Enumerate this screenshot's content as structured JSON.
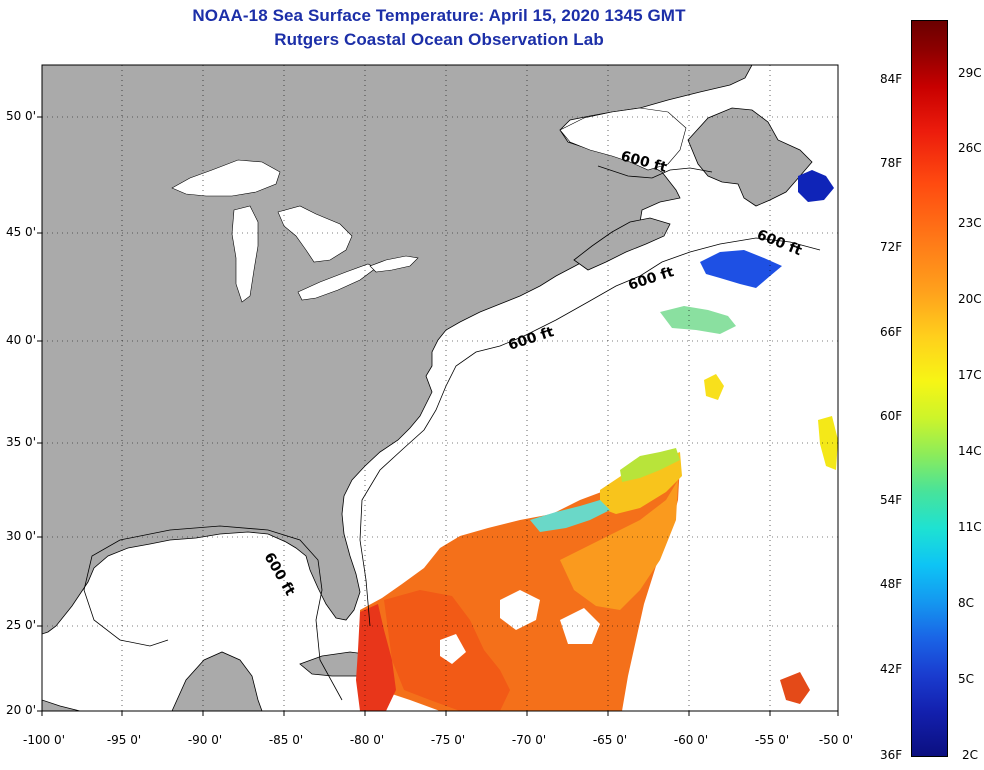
{
  "title": {
    "line1": "NOAA-18 Sea Surface Temperature:  April 15, 2020 1345 GMT",
    "line2": "Rutgers Coastal Ocean Observation Lab"
  },
  "axes": {
    "y_labels": [
      "50 0'",
      "45 0'",
      "40 0'",
      "35 0'",
      "30 0'",
      "25 0'",
      "20 0'"
    ],
    "x_labels": [
      "-100 0'",
      "-95 0'",
      "-90 0'",
      "-85 0'",
      "-80 0'",
      "-75 0'",
      "-70 0'",
      "-65 0'",
      "-60 0'",
      "-55 0'",
      "-50 0'"
    ]
  },
  "contour_labels": [
    "600 ft",
    "600 ft",
    "600 ft",
    "600 ft",
    "600 ft"
  ],
  "colorbar": {
    "fahrenheit": [
      "84F",
      "78F",
      "72F",
      "66F",
      "60F",
      "54F",
      "48F",
      "42F",
      "36F"
    ],
    "celsius": [
      "29C",
      "26C",
      "23C",
      "20C",
      "17C",
      "14C",
      "11C",
      "8C",
      "5C",
      "2C"
    ]
  },
  "colors": {
    "land": "#aaaaaa",
    "ocean": "#ffffff",
    "title": "#1c2fa8"
  }
}
